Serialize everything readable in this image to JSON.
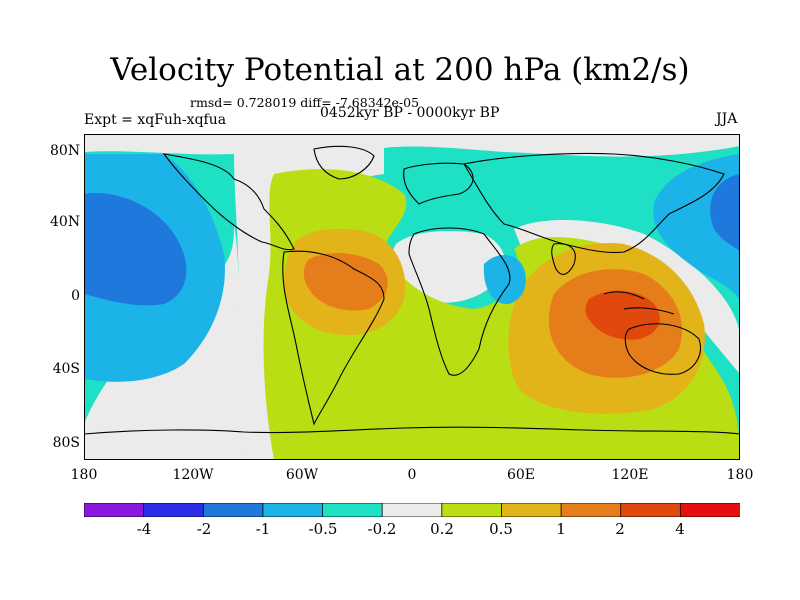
{
  "title": "Velocity Potential at 200 hPa (km2/s)",
  "stats": "rmsd= 0.728019 diff= -7.68342e-05",
  "experiment": "Expt = xqFuh-xqfua",
  "period": "0452kyr BP - 0000kyr BP",
  "season": "JJA",
  "axes": {
    "y_ticks": [
      "80N",
      "40N",
      "0",
      "40S",
      "80S"
    ],
    "x_ticks": [
      "180",
      "120W",
      "60W",
      "0",
      "60E",
      "120E",
      "180"
    ]
  },
  "colorbar": {
    "labels": [
      "-4",
      "-2",
      "-1",
      "-0.5",
      "-0.2",
      "0.2",
      "0.5",
      "1",
      "2",
      "4"
    ],
    "colors": [
      "#8a16e0",
      "#2a2ee6",
      "#1f78dc",
      "#1cb4e8",
      "#1ee0c4",
      "#ebebeb",
      "#b9de14",
      "#e2b41a",
      "#e57e1a",
      "#e0480c",
      "#e60e0e"
    ]
  },
  "field_colors": {
    "ocean_base": "#1ee0c4",
    "neutral": "#ebebeb",
    "weak_negative": "#1cb4e8",
    "moderate_negative": "#1f78dc",
    "weak_positive": "#b9de14",
    "moderate_positive": "#e2b41a",
    "strong_positive": "#e57e1a",
    "very_strong_positive": "#e0480c",
    "coastline": "#000000"
  }
}
